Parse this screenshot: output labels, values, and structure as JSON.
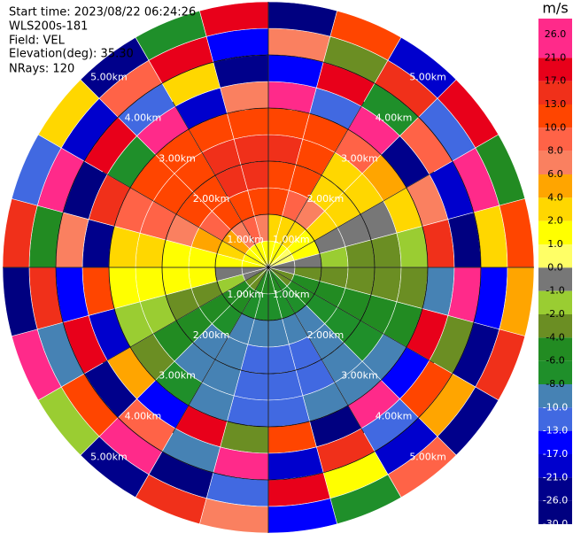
{
  "chart_data": {
    "type": "ppi",
    "info": [
      "Start time: 2023/08/22 06:24:26",
      "WLS200s-181",
      "Field: VEL",
      "Elevation(deg): 35.30",
      "NRays: 120"
    ],
    "colorbar_label": "m/s",
    "colorbar_ticks": [
      {
        "value": 26,
        "label": "26.0"
      },
      {
        "value": 21,
        "label": "21.0"
      },
      {
        "value": 17,
        "label": "17.0"
      },
      {
        "value": 13,
        "label": "13.0"
      },
      {
        "value": 10,
        "label": "10.0"
      },
      {
        "value": 8,
        "label": "8.0"
      },
      {
        "value": 6,
        "label": "6.0"
      },
      {
        "value": 4,
        "label": "4.0"
      },
      {
        "value": 2,
        "label": "2.0"
      },
      {
        "value": 1,
        "label": "1.0"
      },
      {
        "value": 0,
        "label": "0.0"
      },
      {
        "value": -1,
        "label": "-1.0"
      },
      {
        "value": -2,
        "label": "-2.0"
      },
      {
        "value": -4,
        "label": "-4.0"
      },
      {
        "value": -6,
        "label": "-6.0"
      },
      {
        "value": -8,
        "label": "-8.0"
      },
      {
        "value": -10,
        "label": "-10.0"
      },
      {
        "value": -13,
        "label": "-13.0"
      },
      {
        "value": -17,
        "label": "-17.0"
      },
      {
        "value": -21,
        "label": "-21.0"
      },
      {
        "value": -26,
        "label": "-26.0"
      },
      {
        "value": -30,
        "label": "-30.0"
      }
    ],
    "colors": [
      "#ff2a8a",
      "#e8001a",
      "#f0301a",
      "#ff4500",
      "#ff6347",
      "#fa8060",
      "#ffa500",
      "#ffd700",
      "#ffff00",
      "#ffff66",
      "#777777",
      "#9acd32",
      "#6b8e23",
      "#228b22",
      "#1f8f2a",
      "#4682b4",
      "#4169e1",
      "#0000ff",
      "#0000cd",
      "#00008b",
      "#000080"
    ],
    "range_rings": [
      {
        "value": 1,
        "label": "1.00km"
      },
      {
        "value": 2,
        "label": "2.00km"
      },
      {
        "value": 3,
        "label": "3.00km"
      },
      {
        "value": 4,
        "label": "4.00km"
      },
      {
        "value": 5,
        "label": "5.00km"
      }
    ],
    "azimuths": [
      0,
      15,
      30,
      45,
      60,
      75,
      90,
      105,
      120,
      135,
      150,
      165,
      180,
      195,
      210,
      225,
      240,
      255,
      270,
      285,
      300,
      315,
      330,
      345,
      360
    ],
    "ranges": [
      0,
      0.5,
      1,
      1.5,
      2,
      2.5,
      3,
      3.5,
      4,
      4.5,
      5
    ],
    "values": [
      [
        1.5,
        4,
        12,
        12,
        14,
        12,
        24,
        -15,
        8,
        -27
      ],
      [
        1.5,
        3,
        9,
        12,
        12,
        11,
        -11,
        19,
        -3,
        12
      ],
      [
        1.5,
        3,
        7,
        3,
        3,
        9,
        23,
        -6,
        15,
        -19
      ],
      [
        0.5,
        1.5,
        3,
        3,
        3,
        5,
        -24,
        9,
        -12,
        21
      ],
      [
        0.5,
        1.5,
        -0.5,
        -0.5,
        -0.5,
        3,
        7,
        -18,
        25,
        -4
      ],
      [
        -0.5,
        -0.5,
        -1.5,
        -2.5,
        -2.5,
        -1.5,
        16,
        -28,
        3,
        11
      ],
      [
        -0.5,
        -3,
        -3,
        -3,
        -3,
        -2.5,
        -9,
        22,
        -14,
        5
      ],
      [
        -3,
        -5,
        -5,
        -5,
        -5,
        -5,
        18,
        -2,
        -23,
        14
      ],
      [
        -3,
        -5,
        -7,
        -7,
        -7,
        -9,
        -16,
        11,
        6,
        -25
      ],
      [
        -5,
        -7,
        -9,
        -9,
        -9,
        -9,
        24,
        -11,
        -19,
        9
      ],
      [
        -5,
        -7,
        -9,
        -11,
        -11,
        -9,
        -27,
        15,
        2,
        -7
      ],
      [
        -5,
        -7,
        -9,
        -11,
        -11,
        -11,
        12,
        -20,
        19,
        -15
      ],
      [
        -5,
        -7,
        -9,
        -11,
        -11,
        -11,
        -3,
        25,
        -12,
        7
      ],
      [
        -5,
        -7,
        -9,
        -9,
        -9,
        -9,
        20,
        -8,
        -26,
        17
      ],
      [
        -3,
        -5,
        -7,
        -9,
        -9,
        -7,
        -14,
        9,
        23,
        -22
      ],
      [
        -3,
        -5,
        -5,
        -5,
        -5,
        -3,
        6,
        -24,
        13,
        -1
      ],
      [
        -0.5,
        -1.5,
        -3,
        -3,
        -1.5,
        -1.5,
        -18,
        21,
        -9,
        26
      ],
      [
        -0.5,
        -0.5,
        1.5,
        1.5,
        1.5,
        1.5,
        11,
        -13,
        17,
        -28
      ],
      [
        1.5,
        1.5,
        1.5,
        1.5,
        3,
        3,
        -21,
        7,
        -5,
        14
      ],
      [
        1.5,
        3,
        5,
        7,
        9,
        9,
        15,
        -26,
        22,
        -10
      ],
      [
        1.5,
        5,
        9,
        12,
        12,
        12,
        -7,
        18,
        -17,
        4
      ],
      [
        1.5,
        7,
        12,
        12,
        12,
        12,
        25,
        -12,
        9,
        -23
      ],
      [
        1.5,
        9,
        12,
        14,
        14,
        12,
        -19,
        3,
        20,
        -6
      ],
      [
        1.5,
        7,
        12,
        14,
        14,
        12,
        8,
        -22,
        -14,
        19
      ]
    ]
  }
}
